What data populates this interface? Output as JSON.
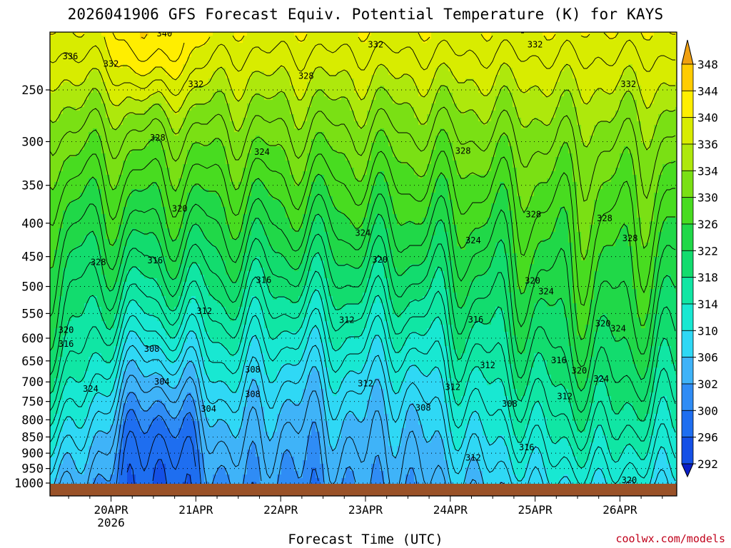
{
  "title": "2026041906 GFS Forecast Equiv. Potential Temperature (K) for KAYS",
  "credit": "coolwx.com/models",
  "chart_data": {
    "type": "heatmap",
    "title": "2026041906 GFS Forecast Equiv. Potential Temperature (K) for KAYS",
    "xlabel": "Forecast Time (UTC)",
    "ylabel": "",
    "x_ticks": [
      {
        "label": "20APR",
        "sublabel": "2026",
        "value": 0.0
      },
      {
        "label": "21APR",
        "value": 1.0
      },
      {
        "label": "22APR",
        "value": 2.0
      },
      {
        "label": "23APR",
        "value": 3.0
      },
      {
        "label": "24APR",
        "value": 4.0
      },
      {
        "label": "25APR",
        "value": 5.0
      },
      {
        "label": "26APR",
        "value": 6.0
      }
    ],
    "xlim": [
      -0.72,
      6.67
    ],
    "y_ticks": [
      250,
      300,
      350,
      400,
      450,
      500,
      550,
      600,
      650,
      700,
      750,
      800,
      850,
      900,
      950,
      1000
    ],
    "ylim": [
      1010,
      200
    ],
    "y_scale": "log",
    "grid": true,
    "colorbar": {
      "levels": [
        292,
        296,
        300,
        302,
        306,
        310,
        314,
        318,
        322,
        326,
        330,
        334,
        336,
        340,
        344,
        348
      ],
      "colors": [
        "#0a1fc8",
        "#1450e6",
        "#1e6ef0",
        "#2f8cf5",
        "#3fb3f8",
        "#2fd8f5",
        "#18e8d2",
        "#10e6a4",
        "#12dc6e",
        "#20d848",
        "#48dc20",
        "#7ae014",
        "#aee80c",
        "#d8ec00",
        "#ffee00",
        "#ffcc00",
        "#f0a010"
      ],
      "extend": "both",
      "placement": "right"
    },
    "contour_labels": [
      {
        "value": 340,
        "x": 0.63,
        "p": 205
      },
      {
        "value": 336,
        "x": -0.48,
        "p": 222
      },
      {
        "value": 332,
        "x": 0.0,
        "p": 228
      },
      {
        "value": 332,
        "x": 1.0,
        "p": 245
      },
      {
        "value": 332,
        "x": 3.12,
        "p": 213
      },
      {
        "value": 332,
        "x": 5.0,
        "p": 213
      },
      {
        "value": 332,
        "x": 6.1,
        "p": 245
      },
      {
        "value": 328,
        "x": 0.55,
        "p": 296
      },
      {
        "value": 328,
        "x": 2.3,
        "p": 238
      },
      {
        "value": 328,
        "x": 4.15,
        "p": 310
      },
      {
        "value": 328,
        "x": 4.98,
        "p": 388
      },
      {
        "value": 328,
        "x": 5.82,
        "p": 393
      },
      {
        "value": 328,
        "x": 6.12,
        "p": 422
      },
      {
        "value": 328,
        "x": -0.15,
        "p": 459
      },
      {
        "value": 324,
        "x": 1.78,
        "p": 311
      },
      {
        "value": 324,
        "x": 2.97,
        "p": 414
      },
      {
        "value": 324,
        "x": 4.27,
        "p": 425
      },
      {
        "value": 324,
        "x": 5.13,
        "p": 509
      },
      {
        "value": 324,
        "x": 5.98,
        "p": 580
      },
      {
        "value": 324,
        "x": 5.78,
        "p": 693
      },
      {
        "value": 324,
        "x": -0.24,
        "p": 717
      },
      {
        "value": 320,
        "x": 0.81,
        "p": 380
      },
      {
        "value": 320,
        "x": 3.17,
        "p": 455
      },
      {
        "value": 320,
        "x": 4.97,
        "p": 490
      },
      {
        "value": 320,
        "x": 5.8,
        "p": 570
      },
      {
        "value": 320,
        "x": 5.52,
        "p": 673
      },
      {
        "value": 320,
        "x": -0.53,
        "p": 583
      },
      {
        "value": 320,
        "x": 6.11,
        "p": 990
      },
      {
        "value": 316,
        "x": 0.52,
        "p": 456
      },
      {
        "value": 316,
        "x": 1.8,
        "p": 489
      },
      {
        "value": 316,
        "x": 4.3,
        "p": 562
      },
      {
        "value": 316,
        "x": 5.28,
        "p": 649
      },
      {
        "value": 316,
        "x": -0.53,
        "p": 612
      },
      {
        "value": 316,
        "x": 4.9,
        "p": 882
      },
      {
        "value": 312,
        "x": 1.1,
        "p": 545
      },
      {
        "value": 312,
        "x": 2.78,
        "p": 563
      },
      {
        "value": 312,
        "x": 4.44,
        "p": 660
      },
      {
        "value": 312,
        "x": 3.0,
        "p": 704
      },
      {
        "value": 312,
        "x": 4.03,
        "p": 713
      },
      {
        "value": 312,
        "x": 5.35,
        "p": 737
      },
      {
        "value": 312,
        "x": 4.27,
        "p": 914
      },
      {
        "value": 308,
        "x": 0.48,
        "p": 623
      },
      {
        "value": 308,
        "x": 1.67,
        "p": 670
      },
      {
        "value": 308,
        "x": 1.67,
        "p": 731
      },
      {
        "value": 308,
        "x": 3.68,
        "p": 767
      },
      {
        "value": 308,
        "x": 4.7,
        "p": 756
      },
      {
        "value": 304,
        "x": 0.6,
        "p": 700
      },
      {
        "value": 304,
        "x": 1.15,
        "p": 770
      }
    ]
  }
}
